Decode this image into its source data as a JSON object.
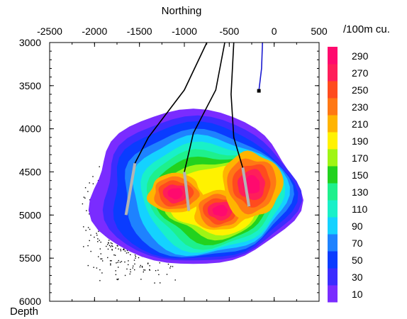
{
  "chart_data": {
    "type": "heatmap",
    "xlabel": "Northing",
    "ylabel": "Depth",
    "x_ticks": [
      -2500,
      -2000,
      -1500,
      -1000,
      -500,
      0,
      500
    ],
    "y_ticks": [
      3000,
      3500,
      4000,
      4500,
      5000,
      5500,
      6000
    ],
    "xlim": [
      -2500,
      500
    ],
    "ylim": [
      3000,
      6000
    ],
    "y_inverted": true,
    "colorbar": {
      "label": "/100m cu.",
      "ticks": [
        10,
        30,
        50,
        70,
        90,
        110,
        130,
        150,
        170,
        190,
        210,
        230,
        250,
        270,
        290
      ],
      "colors": [
        "#7a2cff",
        "#3b2cff",
        "#0a3cff",
        "#1e82ff",
        "#14d2ff",
        "#19f0c8",
        "#1ef08c",
        "#22d21e",
        "#9ff514",
        "#fff200",
        "#ffb400",
        "#ff7814",
        "#ff4b1e",
        "#ff1e5a",
        "#ff0a6e"
      ]
    },
    "contour_levels": [
      10,
      30,
      50,
      70,
      90,
      110,
      130,
      150,
      170,
      190,
      210,
      230,
      250,
      270,
      290
    ],
    "heatmap_peaks": [
      {
        "x": -1100,
        "y": 4750,
        "value": 250
      },
      {
        "x": -600,
        "y": 4950,
        "value": 250
      },
      {
        "x": -250,
        "y": 4650,
        "value": 260
      }
    ],
    "wells": [
      {
        "color": "#000000",
        "path": [
          [
            -750,
            3000
          ],
          [
            -1000,
            3550
          ],
          [
            -1400,
            4100
          ],
          [
            -1550,
            4400
          ],
          [
            -1650,
            5000
          ]
        ],
        "bottom_segment_color": "#b4b4b4"
      },
      {
        "color": "#000000",
        "path": [
          [
            -550,
            3000
          ],
          [
            -650,
            3550
          ],
          [
            -900,
            4050
          ],
          [
            -1000,
            4500
          ],
          [
            -950,
            4950
          ]
        ],
        "bottom_segment_color": "#b4b4b4"
      },
      {
        "color": "#000000",
        "path": [
          [
            -450,
            3000
          ],
          [
            -480,
            3600
          ],
          [
            -450,
            4100
          ],
          [
            -350,
            4450
          ],
          [
            -280,
            4900
          ]
        ],
        "bottom_segment_color": "#b4b4b4"
      },
      {
        "color": "#1a1ad0",
        "path": [
          [
            -130,
            3000
          ],
          [
            -140,
            3300
          ],
          [
            -170,
            3560
          ]
        ],
        "end_marker": "square"
      }
    ],
    "scatter": {
      "description_color": "#000000",
      "x_range": [
        -2150,
        -1050
      ],
      "y_range": [
        4400,
        5800
      ]
    }
  }
}
